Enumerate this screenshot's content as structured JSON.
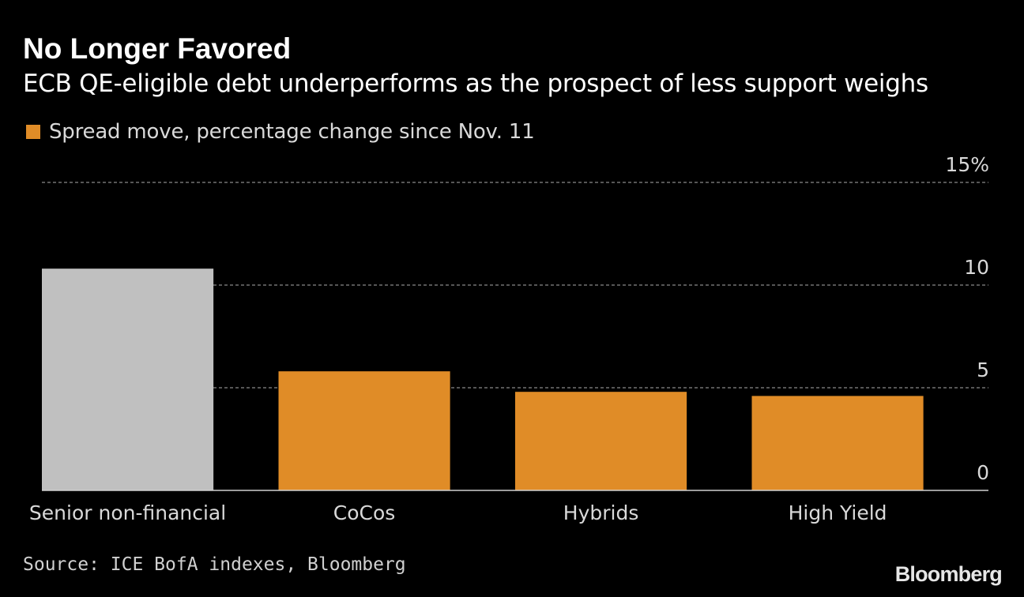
{
  "chart_data": {
    "type": "bar",
    "title": "No Longer Favored",
    "subtitle": "ECB QE-eligible debt underperforms as the prospect of less support weighs",
    "legend": [
      {
        "label": "Spread move, percentage change since Nov. 11",
        "color": "#e08c27"
      }
    ],
    "categories": [
      "Senior non-financial",
      "CoCos",
      "Hybrids",
      "High Yield"
    ],
    "values": [
      10.8,
      5.8,
      4.8,
      4.6
    ],
    "colors": [
      "#c0c0c0",
      "#e08c27",
      "#e08c27",
      "#e08c27"
    ],
    "ylim": [
      0,
      15
    ],
    "yticks": [
      {
        "value": 0,
        "label": "0"
      },
      {
        "value": 5,
        "label": "5"
      },
      {
        "value": 10,
        "label": "10"
      },
      {
        "value": 15,
        "label": "15%"
      }
    ],
    "grid": true,
    "xlabel": "",
    "ylabel": ""
  },
  "footer": {
    "source": "Source: ICE BofA indexes, Bloomberg",
    "brand": "Bloomberg"
  }
}
